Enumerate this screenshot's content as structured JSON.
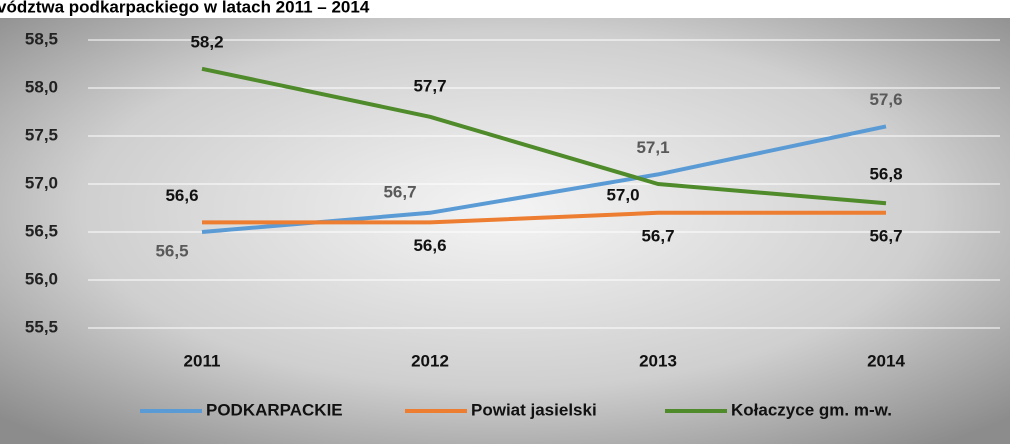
{
  "chart_data": {
    "type": "line",
    "title": "vództwa podkarpackiego w latach 2011 – 2014",
    "categories": [
      "2011",
      "2012",
      "2013",
      "2014"
    ],
    "series": [
      {
        "name": "PODKARPACKIE",
        "color": "#5b9bd5",
        "values": [
          56.5,
          56.7,
          57.1,
          57.6
        ],
        "value_labels": [
          "56,5",
          "56,7",
          "57,1",
          "57,6"
        ]
      },
      {
        "name": "Powiat jasielski",
        "color": "#ed7d31",
        "values": [
          56.6,
          56.6,
          56.7,
          56.7
        ],
        "value_labels": [
          "56,6",
          "56,6",
          "56,7",
          "56,7"
        ]
      },
      {
        "name": "Kołaczyce gm. m-w.",
        "color": "#4f8a2b",
        "values": [
          58.2,
          57.7,
          57.0,
          56.8
        ],
        "value_labels": [
          "58,2",
          "57,7",
          "57,0",
          "56,8"
        ]
      }
    ],
    "ylim": [
      55.5,
      58.5
    ],
    "yticks": [
      {
        "value": 55.5,
        "label": "55,5"
      },
      {
        "value": 56,
        "label": "56,0"
      },
      {
        "value": 56.5,
        "label": "56,5"
      },
      {
        "value": 57,
        "label": "57,0"
      },
      {
        "value": 57.5,
        "label": "57,5"
      },
      {
        "value": 58,
        "label": "58,0"
      },
      {
        "value": 58.5,
        "label": "58,5"
      }
    ],
    "grid": true,
    "legend": "bottom"
  }
}
